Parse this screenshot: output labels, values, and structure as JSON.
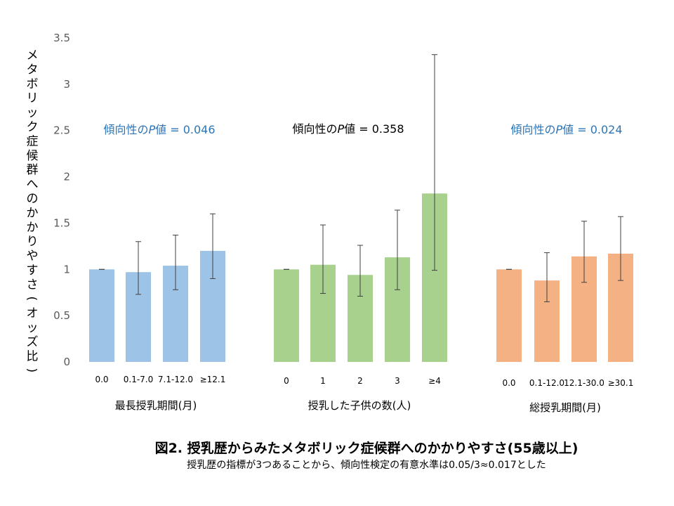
{
  "chart_data": {
    "type": "bar",
    "ylabel": "メタボリック症候群へのかかりやすさ(オッズ比)",
    "ylim": [
      0,
      3.5
    ],
    "yticks": [
      "0",
      "0.5",
      "1",
      "1.5",
      "2",
      "2.5",
      "3",
      "3.5"
    ],
    "grid": false,
    "groups": [
      {
        "name": "最長授乳期間(月)",
        "color": "#9dc3e6",
        "p_value_label": "傾向性の",
        "p_value_P": "P",
        "p_value_text": "値 = 0.046",
        "p_color": "#2e75b6",
        "categories": [
          "0.0",
          "0.1-7.0",
          "7.1-12.0",
          "≥12.1"
        ],
        "values": [
          1.0,
          0.97,
          1.04,
          1.2
        ],
        "ci_low": [
          1.0,
          0.73,
          0.78,
          0.9
        ],
        "ci_high": [
          1.0,
          1.3,
          1.37,
          1.6
        ]
      },
      {
        "name": "授乳した子供の数(人)",
        "color": "#a9d18e",
        "p_value_label": "傾向性の",
        "p_value_P": "P",
        "p_value_text": "値 = 0.358",
        "p_color": "#000000",
        "categories": [
          "0",
          "1",
          "2",
          "3",
          "≥4"
        ],
        "values": [
          1.0,
          1.05,
          0.94,
          1.13,
          1.82
        ],
        "ci_low": [
          1.0,
          0.74,
          0.71,
          0.78,
          0.99
        ],
        "ci_high": [
          1.0,
          1.48,
          1.26,
          1.64,
          3.32
        ]
      },
      {
        "name": "総授乳期間(月)",
        "color": "#f4b183",
        "p_value_label": "傾向性の",
        "p_value_P": "P",
        "p_value_text": "値 = 0.024",
        "p_color": "#2e75b6",
        "categories": [
          "0.0",
          "0.1-12.0",
          "12.1-30.0",
          "≥30.1"
        ],
        "values": [
          1.0,
          0.88,
          1.14,
          1.17
        ],
        "ci_low": [
          1.0,
          0.65,
          0.86,
          0.88
        ],
        "ci_high": [
          1.0,
          1.18,
          1.52,
          1.57
        ]
      }
    ]
  },
  "caption": {
    "title": "図2. 授乳歴からみたメタボリック症候群へのかかりやすさ(55歳以上)",
    "note": "授乳歴の指標が3つあることから、傾向性検定の有意水準は0.05/3≈0.017とした"
  }
}
